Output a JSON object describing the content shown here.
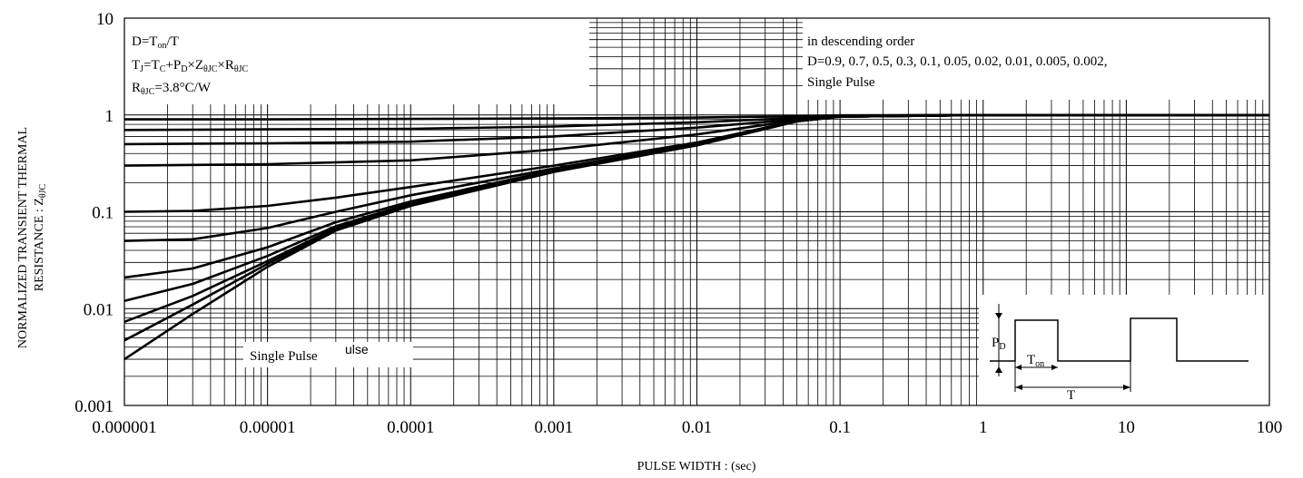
{
  "chart_data": {
    "type": "line",
    "title": "",
    "xlabel": "PULSE WIDTH : (sec)",
    "ylabel_line1": "NORMALIZED TRANSIENT THERMAL",
    "ylabel_line2": "RESISTANCE : Z",
    "ylabel_sub": "θJC",
    "x_scale": "log",
    "y_scale": "log",
    "xlim": [
      1e-06,
      100
    ],
    "ylim": [
      0.001,
      10
    ],
    "x_ticks": [
      "0.000001",
      "0.00001",
      "0.0001",
      "0.001",
      "0.01",
      "0.1",
      "1",
      "10",
      "100"
    ],
    "y_ticks": [
      "10",
      "1",
      "0.1",
      "0.01",
      "0.001"
    ],
    "grid": true,
    "legend": "in descending order",
    "duty_list": "D=0.9, 0.7,  0.5, 0.3, 0.1, 0.05, 0.02, 0.01, 0.005, 0.002,",
    "single_pulse_entry": "Single Pulse",
    "single_pulse_label": "Single Pulse",
    "ghost_text": "ulse",
    "params": [
      {
        "main": "D=T",
        "sub": "on",
        "rest": "/T"
      },
      {
        "main": "T",
        "sub": "J",
        "rest": "=T"
      },
      {
        "main": "R",
        "sub": "θJC",
        "rest": "=3.8°C/W"
      }
    ],
    "formula2": [
      {
        "t": "T",
        "s": "J"
      },
      {
        "t": "=T",
        "s": "C"
      },
      {
        "t": "+P",
        "s": "D"
      },
      {
        "t": "×Z",
        "s": "θJC"
      },
      {
        "t": "×R",
        "s": "θJC"
      }
    ],
    "series": [
      {
        "name": "D=0.9",
        "x": [
          1e-06,
          1e-05,
          0.0001,
          0.001,
          0.01,
          0.05,
          0.1,
          1,
          100
        ],
        "y": [
          0.9,
          0.9,
          0.91,
          0.92,
          0.94,
          0.97,
          0.99,
          1,
          1
        ]
      },
      {
        "name": "D=0.7",
        "x": [
          1e-06,
          1e-05,
          0.0001,
          0.001,
          0.01,
          0.05,
          0.1,
          1,
          100
        ],
        "y": [
          0.7,
          0.71,
          0.72,
          0.76,
          0.84,
          0.93,
          0.98,
          1,
          1
        ]
      },
      {
        "name": "D=0.5",
        "x": [
          1e-06,
          1e-05,
          0.0001,
          0.001,
          0.01,
          0.05,
          0.1,
          1,
          100
        ],
        "y": [
          0.5,
          0.51,
          0.53,
          0.6,
          0.74,
          0.9,
          0.97,
          1,
          1
        ]
      },
      {
        "name": "D=0.3",
        "x": [
          1e-06,
          1e-05,
          0.0001,
          0.001,
          0.01,
          0.05,
          0.1,
          1,
          100
        ],
        "y": [
          0.3,
          0.31,
          0.34,
          0.44,
          0.63,
          0.88,
          0.96,
          1,
          1
        ]
      },
      {
        "name": "D=0.1",
        "x": [
          1e-06,
          3e-06,
          1e-05,
          3e-05,
          0.0001,
          0.001,
          0.01,
          0.05,
          0.1,
          1,
          100
        ],
        "y": [
          0.1,
          0.102,
          0.115,
          0.14,
          0.18,
          0.3,
          0.52,
          0.87,
          0.96,
          1,
          1
        ]
      },
      {
        "name": "D=0.05",
        "x": [
          1e-06,
          3e-06,
          1e-05,
          3e-05,
          0.0001,
          0.001,
          0.01,
          0.05,
          0.1,
          1,
          100
        ],
        "y": [
          0.05,
          0.052,
          0.068,
          0.1,
          0.148,
          0.28,
          0.5,
          0.86,
          0.96,
          1,
          1
        ]
      },
      {
        "name": "D=0.02",
        "x": [
          1e-06,
          3e-06,
          1e-05,
          3e-05,
          0.0001,
          0.001,
          0.01,
          0.05,
          0.1,
          1,
          100
        ],
        "y": [
          0.021,
          0.026,
          0.043,
          0.078,
          0.128,
          0.27,
          0.49,
          0.86,
          0.96,
          1,
          1
        ]
      },
      {
        "name": "D=0.01",
        "x": [
          1e-06,
          3e-06,
          1e-05,
          3e-05,
          0.0001,
          0.001,
          0.01,
          0.05,
          0.1,
          1,
          100
        ],
        "y": [
          0.012,
          0.018,
          0.035,
          0.071,
          0.122,
          0.265,
          0.49,
          0.86,
          0.96,
          1,
          1
        ]
      },
      {
        "name": "D=0.005",
        "x": [
          1e-06,
          3e-06,
          1e-05,
          3e-05,
          0.0001,
          0.001,
          0.01,
          0.05,
          0.1,
          1,
          100
        ],
        "y": [
          0.0073,
          0.0135,
          0.031,
          0.068,
          0.119,
          0.262,
          0.488,
          0.86,
          0.96,
          1,
          1
        ]
      },
      {
        "name": "D=0.002",
        "x": [
          1e-06,
          3e-06,
          1e-05,
          3e-05,
          0.0001,
          0.001,
          0.01,
          0.05,
          0.1,
          1,
          100
        ],
        "y": [
          0.0047,
          0.011,
          0.029,
          0.066,
          0.117,
          0.26,
          0.487,
          0.86,
          0.96,
          1,
          1
        ]
      },
      {
        "name": "Single Pulse",
        "x": [
          1e-06,
          3e-06,
          1e-05,
          3e-05,
          0.0001,
          0.001,
          0.01,
          0.05,
          0.1,
          1,
          100
        ],
        "y": [
          0.003,
          0.0088,
          0.027,
          0.064,
          0.115,
          0.258,
          0.486,
          0.86,
          0.96,
          1,
          1
        ]
      }
    ],
    "inset": {
      "pd": "P",
      "pd_sub": "D",
      "ton": "T",
      "ton_sub": "on",
      "t": "T"
    }
  }
}
